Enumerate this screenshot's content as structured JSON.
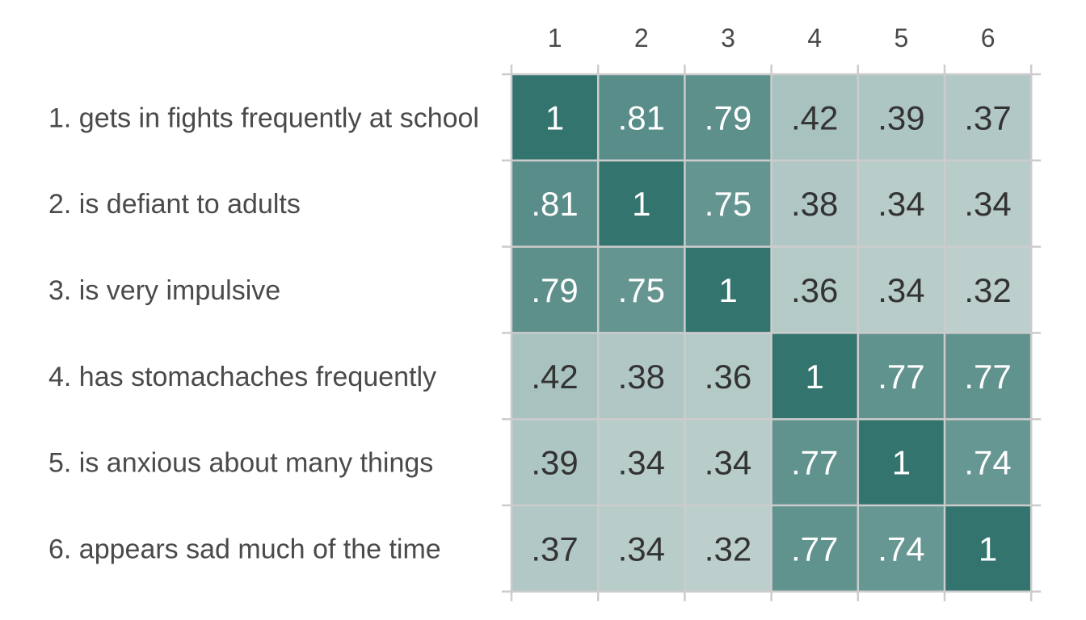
{
  "chart_data": {
    "type": "heatmap",
    "title": "",
    "xlabel": "",
    "ylabel": "",
    "columns": [
      "1",
      "2",
      "3",
      "4",
      "5",
      "6"
    ],
    "rows": [
      "1. gets in fights frequently at school",
      "2. is defiant to adults",
      "3. is very impulsive",
      "4. has stomachaches frequently",
      "5. is anxious about many things",
      "6. appears sad much of the time"
    ],
    "values": [
      [
        1,
        0.81,
        0.79,
        0.42,
        0.39,
        0.37
      ],
      [
        0.81,
        1,
        0.75,
        0.38,
        0.34,
        0.34
      ],
      [
        0.79,
        0.75,
        1,
        0.36,
        0.34,
        0.32
      ],
      [
        0.42,
        0.38,
        0.36,
        1,
        0.77,
        0.77
      ],
      [
        0.39,
        0.34,
        0.34,
        0.77,
        1,
        0.74
      ],
      [
        0.37,
        0.34,
        0.32,
        0.77,
        0.74,
        1
      ]
    ],
    "value_labels": [
      [
        "1",
        ".81",
        ".79",
        ".42",
        ".39",
        ".37"
      ],
      [
        ".81",
        "1",
        ".75",
        ".38",
        ".34",
        ".34"
      ],
      [
        ".79",
        ".75",
        "1",
        ".36",
        ".34",
        ".32"
      ],
      [
        ".42",
        ".38",
        ".36",
        "1",
        ".77",
        ".77"
      ],
      [
        ".39",
        ".34",
        ".34",
        ".77",
        "1",
        ".74"
      ],
      [
        ".37",
        ".34",
        ".32",
        ".77",
        ".74",
        "1"
      ]
    ],
    "color_scale": {
      "low": "#bccfcd",
      "high": "#33746e"
    },
    "text_colors": {
      "light": "#ffffff",
      "dark": "#333333"
    },
    "grid": true,
    "legend": "none"
  }
}
